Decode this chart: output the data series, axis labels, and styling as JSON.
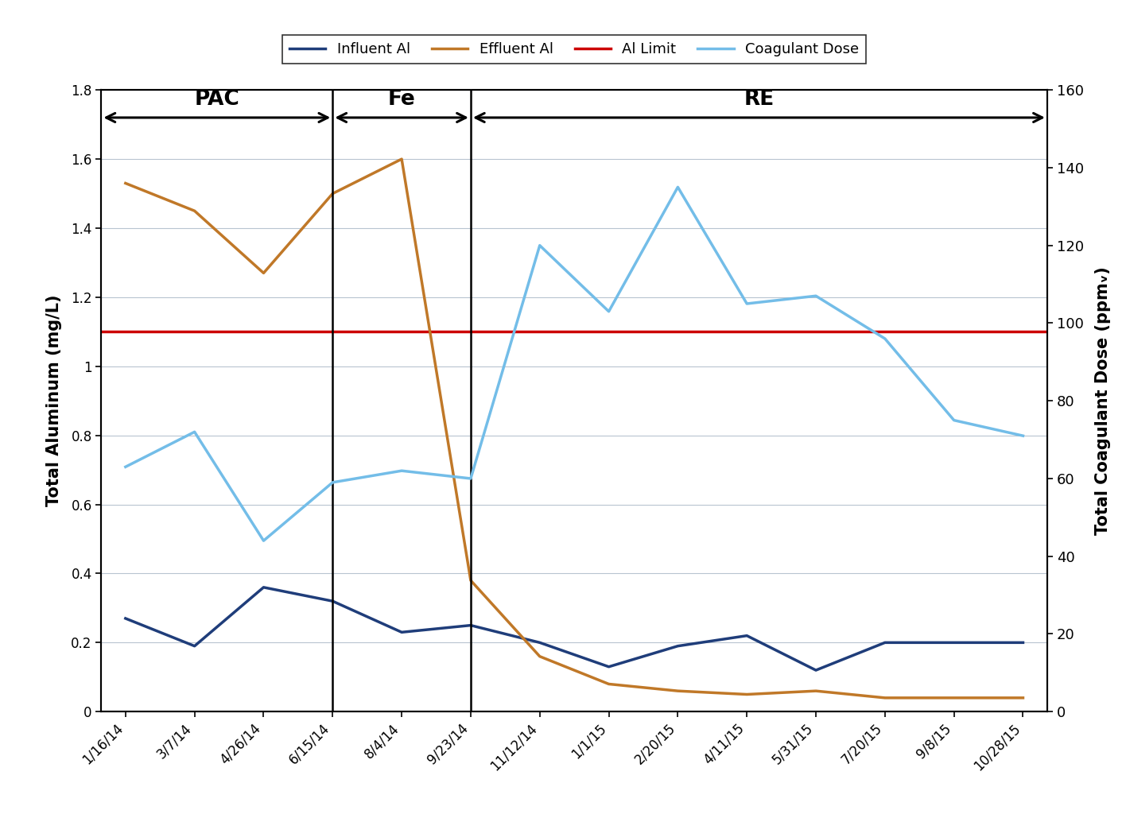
{
  "x_labels": [
    "1/16/14",
    "3/7/14",
    "4/26/14",
    "6/15/14",
    "8/4/14",
    "9/23/14",
    "11/12/14",
    "1/1/15",
    "2/20/15",
    "4/11/15",
    "5/31/15",
    "7/20/15",
    "9/8/15",
    "10/28/15"
  ],
  "influent_al": [
    0.27,
    0.19,
    0.36,
    0.32,
    0.23,
    0.25,
    0.2,
    0.13,
    0.19,
    0.22,
    0.12,
    0.2,
    0.2,
    0.2
  ],
  "effluent_al": [
    1.53,
    1.45,
    1.27,
    1.5,
    1.6,
    0.38,
    0.16,
    0.08,
    0.06,
    0.05,
    0.06,
    0.04,
    0.04,
    0.04
  ],
  "coagulant_ppm": [
    63,
    72,
    44,
    59,
    62,
    60,
    120,
    103,
    135,
    105,
    107,
    96,
    75,
    71
  ],
  "al_limit": 1.1,
  "influent_color": "#1f3d7a",
  "effluent_color": "#c07828",
  "al_limit_color": "#cc0000",
  "coagulant_color": "#73bde8",
  "ylim_left": [
    0,
    1.8
  ],
  "ylim_right": [
    0,
    160
  ],
  "ylabel_left": "Total Aluminum (mg/L)",
  "ylabel_right": "Total Coagulant Dose (ppmᵥ)",
  "pac_label": "PAC",
  "fe_label": "Fe",
  "re_label": "RE",
  "divider_indices": [
    3,
    5
  ],
  "background_color": "#ffffff",
  "grid_color": "#b8c4d0",
  "legend_labels": [
    "Influent Al",
    "Effluent Al",
    "Al Limit",
    "Coagulant Dose"
  ],
  "yticks_left": [
    0,
    0.2,
    0.4,
    0.6,
    0.8,
    1.0,
    1.2,
    1.4,
    1.6,
    1.8
  ],
  "ytick_labels_left": [
    "0",
    "0.2",
    "0.4",
    "0.6",
    "0.8",
    "1",
    "1.2",
    "1.4",
    "1.6",
    "1.8"
  ],
  "yticks_right": [
    0,
    20,
    40,
    60,
    80,
    100,
    120,
    140,
    160
  ],
  "ytick_labels_right": [
    "0",
    "20",
    "40",
    "60",
    "80",
    "100",
    "120",
    "140",
    "160"
  ]
}
